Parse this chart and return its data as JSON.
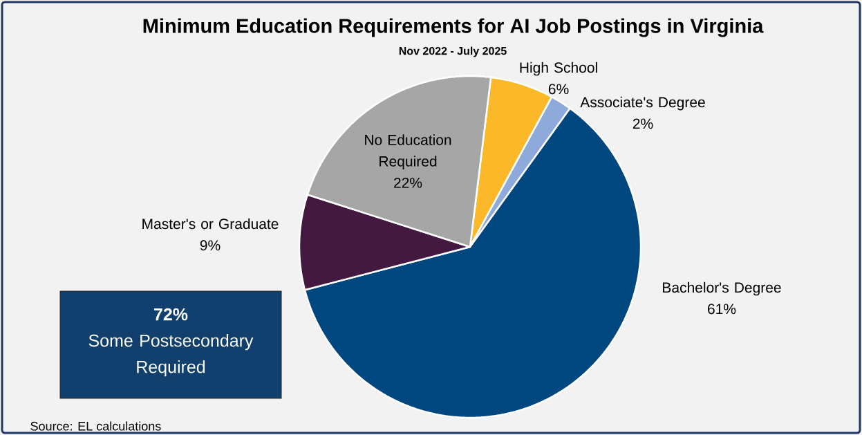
{
  "chart_data": {
    "type": "pie",
    "title": "Minimum Education Requirements for AI Job Postings in Virginia",
    "subtitle": "Nov 2022 - July 2025",
    "categories": [
      "High School",
      "Associate's Degree",
      "Bachelor's Degree",
      "Master's or Graduate",
      "No Education Required"
    ],
    "values": [
      6,
      2,
      61,
      9,
      22
    ],
    "value_labels": [
      "6%",
      "2%",
      "61%",
      "9%",
      "22%"
    ],
    "colors": [
      "#fbb829",
      "#8eaadb",
      "#00467f",
      "#44193f",
      "#a6a6a6"
    ],
    "annotations": [
      "72%",
      "Some Postsecondary Required",
      "Source: EL calculations"
    ]
  }
}
